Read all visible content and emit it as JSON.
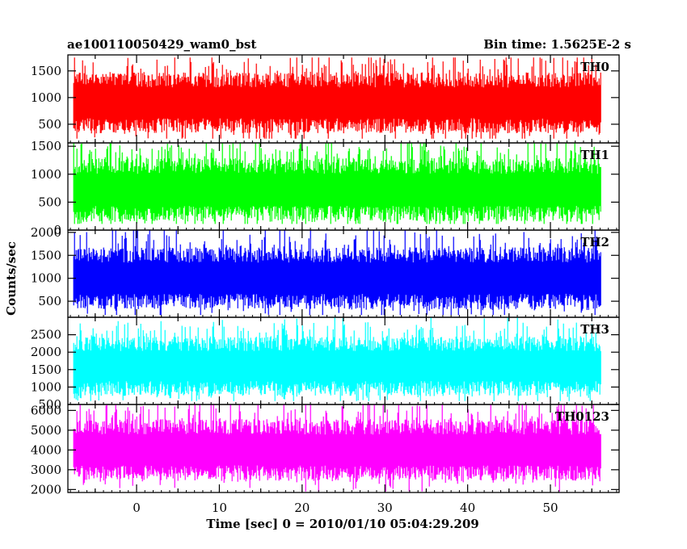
{
  "chart_data": {
    "type": "line",
    "title_left": "ae100110050429_wam0_bst",
    "title_right": "Bin time: 1.5625E-2 s",
    "xlabel": "Time [sec] 0 = 2010/01/10 05:04:29.209",
    "ylabel": "Counts/sec",
    "xlim": [
      -8.3,
      58.3
    ],
    "x_ticks": [
      0,
      10,
      20,
      30,
      40,
      50
    ],
    "x_range": [
      -7.6,
      56.1
    ],
    "panels": [
      {
        "name": "TH0",
        "color": "#ff0000",
        "ylim": [
          150,
          1800
        ],
        "y_ticks": [
          500,
          1000,
          1500
        ],
        "base_mean": 900,
        "spread": 220,
        "min": 230,
        "max": 1750
      },
      {
        "name": "TH1",
        "color": "#00ff00",
        "ylim": [
          0,
          1560
        ],
        "y_ticks": [
          0,
          500,
          1000,
          1500
        ],
        "base_mean": 720,
        "spread": 220,
        "min": 110,
        "max": 1560
      },
      {
        "name": "TH2",
        "color": "#0000ff",
        "ylim": [
          150,
          2050
        ],
        "y_ticks": [
          500,
          1000,
          1500,
          2000
        ],
        "base_mean": 1000,
        "spread": 260,
        "min": 200,
        "max": 2050
      },
      {
        "name": "TH3",
        "color": "#00ffff",
        "ylim": [
          500,
          3000
        ],
        "y_ticks": [
          500,
          1000,
          1500,
          2000,
          2500
        ],
        "base_mean": 1600,
        "spread": 330,
        "min": 600,
        "max": 3000
      },
      {
        "name": "TH0123",
        "color": "#ff00ff",
        "ylim": [
          1850,
          6300
        ],
        "y_ticks": [
          2000,
          3000,
          4000,
          5000,
          6000
        ],
        "base_mean": 4000,
        "spread": 600,
        "min": 1900,
        "max": 6300
      }
    ]
  }
}
